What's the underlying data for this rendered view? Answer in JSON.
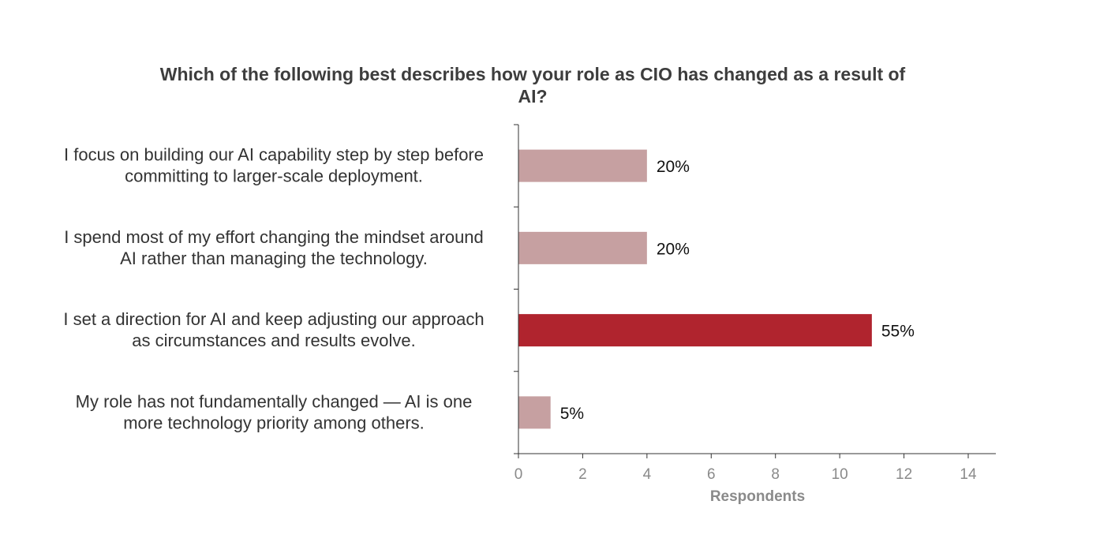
{
  "chart_data": {
    "type": "bar",
    "orientation": "horizontal",
    "title": "Which of the following best describes how your role as CIO has changed as a result of AI?",
    "title_lines": [
      "Which of the following best describes how your role as CIO has changed as a result of",
      "AI?"
    ],
    "categories": [
      "I focus on building our AI capability step by step before committing to larger-scale deployment.",
      "I spend most of my effort changing the mindset around AI rather than managing the technology.",
      "I set a direction for AI and keep adjusting our approach as circumstances and results evolve.",
      "My role has not fundamentally changed — AI is one more technology priority among others."
    ],
    "category_lines": [
      [
        "I focus on building our AI capability step by step before",
        "committing to larger-scale deployment."
      ],
      [
        "I spend most of my effort changing the mindset around",
        "AI rather than managing the technology."
      ],
      [
        "I set a direction for AI and keep adjusting our approach",
        "as circumstances and results evolve."
      ],
      [
        "My role has not fundamentally changed — AI is one",
        "more technology priority among others."
      ]
    ],
    "values": [
      4,
      4,
      11,
      1
    ],
    "data_labels": [
      "20%",
      "20%",
      "55%",
      "5%"
    ],
    "bar_colors": [
      "#c6a0a1",
      "#c6a0a1",
      "#b0242e",
      "#c6a0a1"
    ],
    "xlabel": "Respondents",
    "ylabel": "",
    "xlim": [
      0,
      14
    ],
    "xticks": [
      0,
      2,
      4,
      6,
      8,
      10,
      12,
      14
    ],
    "grid": false,
    "legend": "none"
  }
}
